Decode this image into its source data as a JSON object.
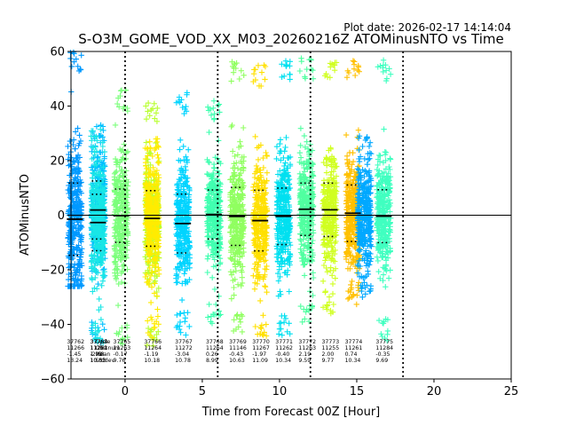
{
  "plot_date": "Plot date: 2026-02-17 14:14:04",
  "chart_data": {
    "type": "scatter",
    "title": "S-O3M_GOME_VOD_XX_M03_20260216Z ATOMinusNTO vs Time",
    "xlabel": "Time from Forecast 00Z [Hour]",
    "ylabel": "ATOMinusNTO",
    "xlim": [
      -3.5,
      25
    ],
    "ylim": [
      -60,
      60
    ],
    "xticks": [
      0,
      5,
      10,
      15,
      20,
      25
    ],
    "yticks": [
      -60,
      -40,
      -20,
      0,
      20,
      40,
      60
    ],
    "zero_line": 0,
    "forecast_boundaries": [
      0,
      6,
      12,
      18
    ],
    "legend_labels": [
      "Cycle",
      "Obs.num",
      "Mean",
      "Stddev"
    ],
    "series": [
      {
        "time": -3.25,
        "cycle": "37762",
        "count": "11266",
        "mean": -1.45,
        "mean_text": "-1.45",
        "stddev": 13.24,
        "stddev_text": "13.24",
        "min": -26,
        "max": 60,
        "color": "#0099ff"
      },
      {
        "time": -1.75,
        "cycle": "37763",
        "count": "11271",
        "mean": 1.91,
        "mean_text": "1.91",
        "stddev": 10.63,
        "stddev_text": "10.63",
        "min": -47,
        "max": 33,
        "color": "#00c0ff"
      },
      {
        "time": -1.75,
        "cycle": "37764",
        "count": "11263",
        "mean": -2.68,
        "mean_text": "-2.68",
        "stddev": 10.33,
        "stddev_text": "10.33",
        "min": -47,
        "max": 32,
        "color": "#18e6e6"
      },
      {
        "time": -0.25,
        "cycle": "37765",
        "count": "11263",
        "mean": -0.17,
        "mean_text": "-0.17",
        "stddev": 9.76,
        "stddev_text": "9.76",
        "min": -48,
        "max": 46,
        "color": "#7cff7c"
      },
      {
        "time": 1.75,
        "cycle": "37766",
        "count": "11264",
        "mean": -1.19,
        "mean_text": "-1.19",
        "stddev": 10.18,
        "stddev_text": "10.18",
        "min": -48,
        "max": 42,
        "color": "#b8ff30"
      },
      {
        "time": 1.75,
        "cycle": "",
        "count": "",
        "mean": -1.19,
        "mean_text": "",
        "stddev": 10.18,
        "stddev_text": "",
        "min": -45,
        "max": 28,
        "color": "#ffec00"
      },
      {
        "time": 3.75,
        "cycle": "37767",
        "count": "11272",
        "mean": -3.04,
        "mean_text": "-3.04",
        "stddev": 10.78,
        "stddev_text": "10.78",
        "min": -44,
        "max": 45,
        "color": "#00d4ff"
      },
      {
        "time": 5.75,
        "cycle": "37768",
        "count": "11264",
        "mean": 0.26,
        "mean_text": "0.26",
        "stddev": 8.99,
        "stddev_text": "8.99",
        "min": -40,
        "max": 42,
        "color": "#40ffb0"
      },
      {
        "time": 7.25,
        "cycle": "37769",
        "count": "11146",
        "mean": -0.43,
        "mean_text": "-0.43",
        "stddev": 10.63,
        "stddev_text": "10.63",
        "min": -44,
        "max": 57,
        "color": "#90ff60"
      },
      {
        "time": 8.75,
        "cycle": "37770",
        "count": "11267",
        "mean": -1.97,
        "mean_text": "-1.97",
        "stddev": 11.09,
        "stddev_text": "11.09",
        "min": -45,
        "max": 55,
        "color": "#ffe000"
      },
      {
        "time": 10.25,
        "cycle": "37771",
        "count": "11262",
        "mean": -0.4,
        "mean_text": "-0.40",
        "stddev": 10.34,
        "stddev_text": "10.34",
        "min": -44,
        "max": 57,
        "color": "#00e0f0"
      },
      {
        "time": 11.75,
        "cycle": "37772",
        "count": "11263",
        "mean": 2.19,
        "mean_text": "2.19",
        "stddev": 9.59,
        "stddev_text": "9.59",
        "min": -40,
        "max": 58,
        "color": "#50ffa0"
      },
      {
        "time": 13.25,
        "cycle": "37773",
        "count": "11255",
        "mean": 2.0,
        "mean_text": "2.00",
        "stddev": 9.77,
        "stddev_text": "9.77",
        "min": -36,
        "max": 58,
        "color": "#d0ff20"
      },
      {
        "time": 14.75,
        "cycle": "37774",
        "count": "11261",
        "mean": 0.74,
        "mean_text": "0.74",
        "stddev": 10.34,
        "stddev_text": "10.34",
        "min": -33,
        "max": 58,
        "color": "#ffc000"
      },
      {
        "time": 15.5,
        "cycle": "",
        "count": "",
        "mean": 0.74,
        "mean_text": "",
        "stddev": 10.34,
        "stddev_text": "",
        "min": -30,
        "max": 29,
        "color": "#00a8ff"
      },
      {
        "time": 16.75,
        "cycle": "37775",
        "count": "11284",
        "mean": -0.35,
        "mean_text": "-0.35",
        "stddev": 9.69,
        "stddev_text": "9.69",
        "min": -46,
        "max": 57,
        "color": "#40ffc0"
      }
    ]
  }
}
